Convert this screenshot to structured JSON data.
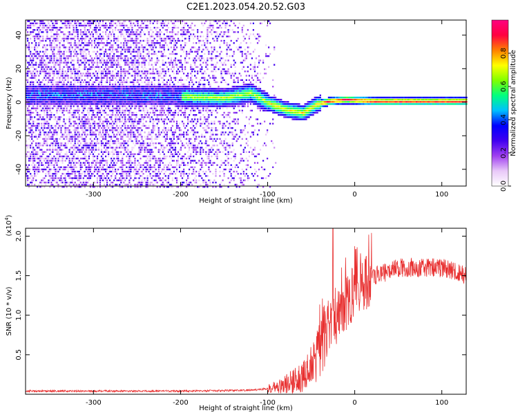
{
  "title": "C2E1.2023.054.20.52.G03",
  "chart_data": [
    {
      "type": "heatmap",
      "xlabel": "Height of straight line (km)",
      "ylabel": "Frequency (Hz)",
      "xlim": [
        -378,
        128
      ],
      "ylim": [
        -50,
        49
      ],
      "xticks": [
        -300,
        -200,
        -100,
        0,
        100
      ],
      "yticks": [
        -40,
        -20,
        0,
        20,
        40
      ],
      "colorbar": {
        "label": "Normalized spectral amplitude",
        "range": [
          0.0,
          1.0
        ],
        "ticks": [
          0.0,
          0.2,
          0.4,
          0.6,
          0.8
        ],
        "tick_labels": [
          "0.0",
          "0.2",
          "0.4",
          "0.6",
          "0.8"
        ],
        "palette": [
          "#ffffff",
          "#e8c8f8",
          "#a040f0",
          "#4000f0",
          "#0000ff",
          "#00c0ff",
          "#00ff80",
          "#80ff00",
          "#ffff00",
          "#ff8000",
          "#ff0040",
          "#ff0080"
        ]
      },
      "signal_track": [
        {
          "x": -270,
          "y": 5
        },
        {
          "x": -200,
          "y": 4
        },
        {
          "x": -150,
          "y": 3
        },
        {
          "x": -120,
          "y": 6
        },
        {
          "x": -100,
          "y": 0
        },
        {
          "x": -80,
          "y": -4
        },
        {
          "x": -60,
          "y": -6
        },
        {
          "x": -45,
          "y": -1
        },
        {
          "x": -30,
          "y": 1
        },
        {
          "x": -10,
          "y": 2
        },
        {
          "x": 20,
          "y": 1
        },
        {
          "x": 60,
          "y": 1
        },
        {
          "x": 100,
          "y": 1
        },
        {
          "x": 128,
          "y": 1
        }
      ]
    },
    {
      "type": "line",
      "xlabel": "Height of straight line (km)",
      "ylabel": "SNR (10 * v/v)",
      "multiplier": "(x10",
      "multiplier_exp": "4",
      "multiplier_close": ")",
      "xlim": [
        -378,
        128
      ],
      "ylim": [
        0,
        2.1
      ],
      "xticks": [
        -300,
        -200,
        -100,
        0,
        100
      ],
      "yticks": [
        0.5,
        1.0,
        1.5,
        2.0
      ],
      "ytick_labels": [
        "0.5",
        "1.0",
        "1.5",
        "2.0"
      ],
      "color": "#e83030",
      "envelope": [
        {
          "x": -378,
          "y": 0.04
        },
        {
          "x": -200,
          "y": 0.04
        },
        {
          "x": -120,
          "y": 0.05
        },
        {
          "x": -100,
          "y": 0.07
        },
        {
          "x": -80,
          "y": 0.12
        },
        {
          "x": -60,
          "y": 0.22
        },
        {
          "x": -40,
          "y": 0.55
        },
        {
          "x": -30,
          "y": 0.8
        },
        {
          "x": -20,
          "y": 1.0
        },
        {
          "x": -10,
          "y": 1.15
        },
        {
          "x": 0,
          "y": 1.3
        },
        {
          "x": 20,
          "y": 1.48
        },
        {
          "x": 50,
          "y": 1.6
        },
        {
          "x": 100,
          "y": 1.6
        },
        {
          "x": 128,
          "y": 1.5
        }
      ],
      "spike": {
        "x": -25,
        "y": 2.1
      }
    }
  ]
}
